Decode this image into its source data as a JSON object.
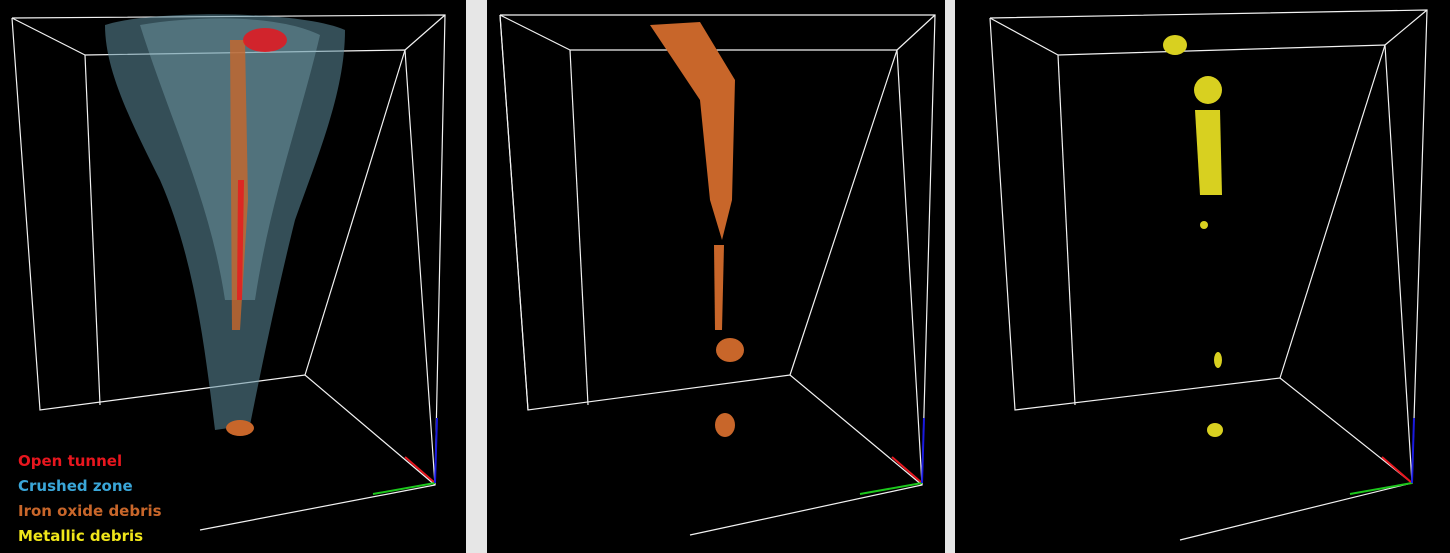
{
  "legend": {
    "items": [
      {
        "label": "Open tunnel",
        "color": "#e8161e"
      },
      {
        "label": "Crushed zone",
        "color": "#3aa6d8"
      },
      {
        "label": "Iron oxide debris",
        "color": "#c8662a"
      },
      {
        "label": "Metallic debris",
        "color": "#f0e61a"
      }
    ]
  }
}
